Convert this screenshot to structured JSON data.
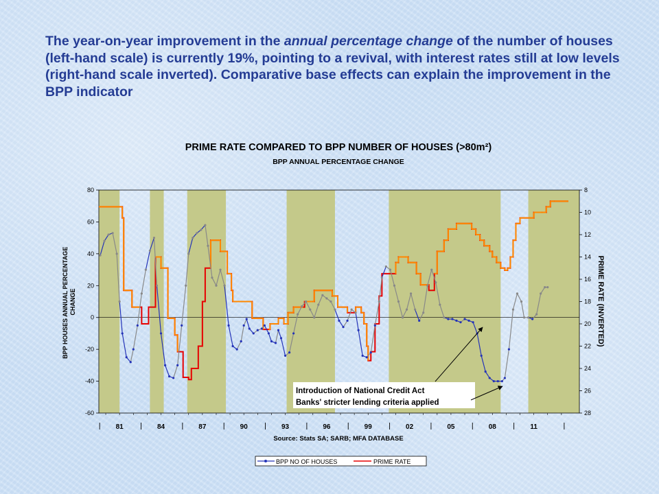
{
  "headline": {
    "part1": "The year-on-year improvement in the ",
    "emphasis": "annual percentage change",
    "part2": " of the number of houses (left-hand scale) is currently 19%, pointing to a revival, with interest rates still at low levels (right-hand scale inverted). Comparative base effects can explain the improvement in the BPP indicator"
  },
  "chart_data": {
    "type": "line",
    "title": "PRIME RATE COMPARED TO BPP NUMBER OF HOUSES (>80m²)",
    "subtitle": "BPP ANNUAL PERCENTAGE CHANGE",
    "ylabel_left": "BPP HOUSES ANNUAL PERCENTAGE CHANGE",
    "ylabel_right": "PRIME RATE (INVERTED)",
    "source": "Source:  Stats SA; SARB; MFA DATABASE",
    "x_range": [
      1979.5,
      2014.3
    ],
    "x_ticks": [
      "81",
      "84",
      "87",
      "90",
      "93",
      "96",
      "99",
      "02",
      "05",
      "08",
      "11"
    ],
    "x_tick_years": [
      1981,
      1984,
      1987,
      1990,
      1993,
      1996,
      1999,
      2002,
      2005,
      2008,
      2011
    ],
    "ylim_left": [
      -60,
      80
    ],
    "y_ticks_left": [
      "80",
      "60",
      "40",
      "20",
      "0",
      "-20",
      "-40",
      "-60"
    ],
    "ylim_right_inverted": [
      8,
      28
    ],
    "y_ticks_right": [
      "8",
      "10",
      "12",
      "14",
      "16",
      "18",
      "20",
      "22",
      "24",
      "26",
      "28"
    ],
    "shaded_periods": [
      [
        1979.5,
        1981.0
      ],
      [
        1983.2,
        1984.2
      ],
      [
        1985.9,
        1988.7
      ],
      [
        1993.1,
        1996.6
      ],
      [
        2000.5,
        2008.6
      ],
      [
        2010.6,
        2014.3
      ]
    ],
    "colors": {
      "positive": "#2433b8",
      "negative": "#888888",
      "prime": "#e60000",
      "prime_inverted_high": "#ff8800",
      "shade": "#c4c98a"
    },
    "series": [
      {
        "name": "BPP NO OF HOUSES",
        "color": "#2433b8",
        "x": [
          1979.6,
          1979.9,
          1980.2,
          1980.5,
          1980.8,
          1981.0,
          1981.2,
          1981.5,
          1981.8,
          1982.0,
          1982.3,
          1982.6,
          1982.9,
          1983.2,
          1983.5,
          1983.7,
          1984.0,
          1984.3,
          1984.6,
          1984.9,
          1985.2,
          1985.5,
          1985.8,
          1986.0,
          1986.3,
          1986.6,
          1986.9,
          1987.2,
          1987.4,
          1987.7,
          1988.0,
          1988.3,
          1988.6,
          1988.9,
          1989.2,
          1989.5,
          1989.8,
          1990.0,
          1990.2,
          1990.4,
          1990.7,
          1991.0,
          1991.3,
          1991.5,
          1991.8,
          1992.0,
          1992.3,
          1992.5,
          1992.7,
          1993.0,
          1993.3,
          1993.6,
          1993.9,
          1994.2,
          1994.5,
          1994.8,
          1995.1,
          1995.4,
          1995.7,
          1996.0,
          1996.3,
          1996.6,
          1996.9,
          1997.2,
          1997.5,
          1997.8,
          1998.1,
          1998.3,
          1998.6,
          1998.9,
          1999.2,
          1999.5,
          1999.8,
          2000.0,
          2000.3,
          2000.6,
          2000.9,
          2001.2,
          2001.5,
          2001.8,
          2002.1,
          2002.4,
          2002.7,
          2003.0,
          2003.3,
          2003.6,
          2003.9,
          2004.2,
          2004.5,
          2004.8,
          2005.1,
          2005.4,
          2005.7,
          2006.0,
          2006.3,
          2006.6,
          2006.9,
          2007.2,
          2007.5,
          2007.8,
          2008.1,
          2008.4,
          2008.7,
          2008.9,
          2009.2,
          2009.5,
          2009.8,
          2010.1,
          2010.3,
          2010.6,
          2010.9,
          2011.2,
          2011.5,
          2011.8,
          2012.0
        ],
        "values": [
          39,
          48,
          52,
          53,
          40,
          10,
          -10,
          -25,
          -28,
          -20,
          -5,
          15,
          30,
          42,
          50,
          20,
          -10,
          -30,
          -37,
          -38,
          -30,
          -5,
          20,
          40,
          50,
          53,
          55,
          58,
          45,
          25,
          20,
          30,
          20,
          -5,
          -18,
          -20,
          -15,
          -5,
          -1,
          -7,
          -10,
          -8,
          -7,
          -5,
          -10,
          -15,
          -16,
          -8,
          -13,
          -24,
          -22,
          -10,
          2,
          7,
          10,
          5,
          0,
          8,
          14,
          12,
          10,
          5,
          -2,
          -6,
          -2,
          5,
          3,
          -8,
          -24,
          -25,
          -22,
          -5,
          10,
          25,
          32,
          30,
          20,
          10,
          0,
          5,
          15,
          5,
          -2,
          3,
          20,
          30,
          22,
          8,
          0,
          -1,
          -1,
          -2,
          -3,
          -1,
          -2,
          -3,
          -10,
          -24,
          -34,
          -38,
          -40,
          -40,
          -40,
          -38,
          -20,
          5,
          15,
          10,
          0,
          0,
          -1,
          2,
          15,
          19,
          19
        ],
        "marker": "dot"
      },
      {
        "name": "PRIME RATE",
        "color": "#e60000",
        "x": [
          1979.5,
          1981.1,
          1981.2,
          1981.3,
          1981.8,
          1981.9,
          1982.5,
          1982.6,
          1983.0,
          1983.1,
          1983.5,
          1983.6,
          1983.9,
          1984.0,
          1984.4,
          1984.5,
          1985.0,
          1985.2,
          1985.6,
          1986.0,
          1986.2,
          1986.7,
          1987.0,
          1987.2,
          1987.6,
          1988.0,
          1988.3,
          1988.7,
          1988.8,
          1989.1,
          1989.2,
          1990.5,
          1990.6,
          1991.3,
          1991.4,
          1991.8,
          1991.9,
          1992.4,
          1992.5,
          1992.9,
          1993.2,
          1993.5,
          1993.6,
          1994.3,
          1994.4,
          1995.0,
          1995.1,
          1996.3,
          1996.4,
          1996.7,
          1996.8,
          1997.4,
          1997.5,
          1998.0,
          1998.1,
          1998.5,
          1998.7,
          1998.9,
          1999.0,
          1999.2,
          1999.5,
          1999.8,
          2000.0,
          2001.0,
          2001.2,
          2001.7,
          2001.9,
          2002.1,
          2002.5,
          2002.8,
          2003.4,
          2003.6,
          2003.8,
          2004.0,
          2004.5,
          2004.8,
          2005.0,
          2005.4,
          2006.3,
          2006.5,
          2006.8,
          2007.1,
          2007.4,
          2007.8,
          2008.0,
          2008.3,
          2008.6,
          2008.9,
          2009.1,
          2009.3,
          2009.5,
          2009.7,
          2010.0,
          2010.5,
          2011.0,
          2011.6,
          2011.9,
          2012.2,
          2012.5,
          2013.5
        ],
        "values": [
          9.5,
          9.5,
          10.5,
          17.0,
          17.0,
          18.5,
          18.5,
          20.0,
          20.0,
          18.5,
          18.5,
          14.0,
          14.0,
          15.0,
          15.0,
          19.5,
          21.0,
          22.5,
          24.8,
          25.0,
          24.0,
          22.0,
          18.0,
          15.0,
          12.5,
          12.5,
          13.5,
          13.5,
          15.5,
          17.0,
          18.0,
          18.0,
          19.5,
          19.5,
          20.5,
          20.5,
          20.0,
          20.0,
          19.5,
          20.0,
          19.0,
          19.0,
          18.5,
          18.5,
          18.0,
          18.0,
          17.0,
          17.0,
          17.5,
          17.5,
          18.5,
          18.5,
          19.0,
          19.0,
          18.5,
          19.0,
          20.0,
          22.0,
          23.3,
          22.5,
          20.0,
          17.5,
          15.5,
          14.5,
          14.0,
          14.0,
          14.5,
          14.5,
          15.5,
          16.5,
          17.0,
          17.0,
          15.5,
          13.5,
          12.5,
          11.5,
          11.5,
          11.0,
          11.0,
          11.5,
          12.0,
          12.5,
          13.0,
          13.5,
          14.0,
          14.5,
          15.0,
          15.2,
          15.0,
          14.0,
          12.5,
          11.0,
          10.5,
          10.5,
          10.0,
          10.0,
          9.5,
          9.0,
          9.0,
          9.0
        ],
        "marker": "none"
      }
    ],
    "legend": {
      "placement": "bottom",
      "entries": [
        "BPP NO OF HOUSES",
        "PRIME RATE"
      ]
    },
    "annotations": [
      {
        "text": "Introduction of National Credit Act",
        "points_to": [
          2007.0,
          -4
        ]
      },
      {
        "text": "Banks' stricter lending criteria applied",
        "points_to": [
          2009.0,
          -40
        ]
      }
    ]
  }
}
